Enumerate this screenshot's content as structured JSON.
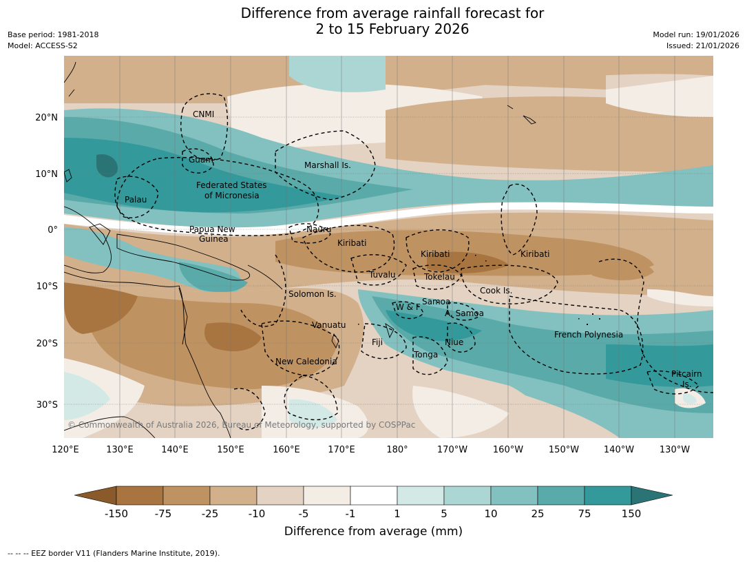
{
  "header": {
    "title_line1": "Difference from average rainfall forecast for",
    "title_line2": "2 to 15 February 2026",
    "base_period": "Base period: 1981-2018",
    "model": "Model: ACCESS-S2",
    "model_run": "Model run: 19/01/2026",
    "issued": "Issued: 21/01/2026"
  },
  "map": {
    "lat_ticks": [
      "20°N",
      "10°N",
      "0°",
      "10°S",
      "20°S",
      "30°S"
    ],
    "lon_ticks": [
      "120°E",
      "130°E",
      "140°E",
      "150°E",
      "160°E",
      "170°E",
      "180°",
      "170°W",
      "160°W",
      "150°W",
      "140°W",
      "130°W"
    ],
    "region_labels": [
      {
        "id": "cnmi",
        "text": "CNMI"
      },
      {
        "id": "guam",
        "text": "Guam"
      },
      {
        "id": "marshall",
        "text": "Marshall Is."
      },
      {
        "id": "fsm1",
        "text": "Federated States"
      },
      {
        "id": "fsm2",
        "text": "of Micronesia"
      },
      {
        "id": "palau",
        "text": "Palau"
      },
      {
        "id": "png1",
        "text": "Papua New"
      },
      {
        "id": "png2",
        "text": "Guinea"
      },
      {
        "id": "nauru",
        "text": "Nauru"
      },
      {
        "id": "kiribati-w",
        "text": "Kiribati"
      },
      {
        "id": "kiribati-c",
        "text": "Kiribati"
      },
      {
        "id": "kiribati-e",
        "text": "Kiribati"
      },
      {
        "id": "tuvalu",
        "text": "Tuvalu"
      },
      {
        "id": "tokelau",
        "text": "Tokelau"
      },
      {
        "id": "cook",
        "text": "Cook Is."
      },
      {
        "id": "solomon",
        "text": "Solomon Is."
      },
      {
        "id": "samoa",
        "text": "Samoa"
      },
      {
        "id": "wf",
        "text": "W & F"
      },
      {
        "id": "asamoa",
        "text": "A. Samoa"
      },
      {
        "id": "vanuatu",
        "text": "Vanuatu"
      },
      {
        "id": "fiji",
        "text": "Fiji"
      },
      {
        "id": "niue",
        "text": "Niue"
      },
      {
        "id": "frpoly",
        "text": "French Polynesia"
      },
      {
        "id": "tonga",
        "text": "Tonga"
      },
      {
        "id": "newcal",
        "text": "New Caledonia"
      },
      {
        "id": "pitcairn1",
        "text": "Pitcairn"
      },
      {
        "id": "pitcairn2",
        "text": "Is."
      }
    ],
    "copyright": "© Commonwealth of Australia 2026, Bureau of Meteorology, supported by COSPPac"
  },
  "legend": {
    "title": "Difference from average (mm)",
    "ticks": [
      "-150",
      "-75",
      "-25",
      "-10",
      "-5",
      "-1",
      "1",
      "5",
      "10",
      "25",
      "75",
      "150"
    ],
    "colors": [
      "#a87540",
      "#bf9262",
      "#d2b08c",
      "#e4d2c2",
      "#f3ede6",
      "#ffffff",
      "#d3e9e6",
      "#acd6d4",
      "#83c0c0",
      "#5aaaa9",
      "#33999a"
    ],
    "extend_low_color": "#8b5a2b",
    "extend_high_color": "#2b7475"
  },
  "footnote": "--  --  -- EEZ border V11 (Flanders Marine Institute, 2019)."
}
